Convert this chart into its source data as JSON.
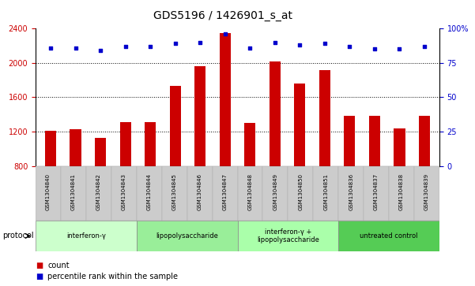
{
  "title": "GDS5196 / 1426901_s_at",
  "samples": [
    "GSM1304840",
    "GSM1304841",
    "GSM1304842",
    "GSM1304843",
    "GSM1304844",
    "GSM1304845",
    "GSM1304846",
    "GSM1304847",
    "GSM1304848",
    "GSM1304849",
    "GSM1304850",
    "GSM1304851",
    "GSM1304836",
    "GSM1304837",
    "GSM1304838",
    "GSM1304839"
  ],
  "counts": [
    1210,
    1230,
    1130,
    1310,
    1310,
    1730,
    1960,
    2350,
    1300,
    2020,
    1760,
    1920,
    1380,
    1380,
    1240,
    1380
  ],
  "percentiles": [
    86,
    86,
    84,
    87,
    87,
    89,
    90,
    96,
    86,
    90,
    88,
    89,
    87,
    85,
    85,
    87
  ],
  "ylim_left": [
    800,
    2400
  ],
  "ylim_right": [
    0,
    100
  ],
  "yticks_left": [
    800,
    1200,
    1600,
    2000,
    2400
  ],
  "yticks_right": [
    0,
    25,
    50,
    75,
    100
  ],
  "bar_color": "#cc0000",
  "dot_color": "#0000cc",
  "groups": [
    {
      "label": "interferon-γ",
      "start": 0,
      "end": 4,
      "color": "#ccffcc"
    },
    {
      "label": "lipopolysaccharide",
      "start": 4,
      "end": 8,
      "color": "#99ee99"
    },
    {
      "label": "interferon-γ +\nlipopolysaccharide",
      "start": 8,
      "end": 12,
      "color": "#aaffaa"
    },
    {
      "label": "untreated control",
      "start": 12,
      "end": 16,
      "color": "#55cc55"
    }
  ],
  "title_fontsize": 10,
  "tick_fontsize": 7,
  "sample_fontsize": 5,
  "group_fontsize": 6,
  "protocol_label": "protocol"
}
